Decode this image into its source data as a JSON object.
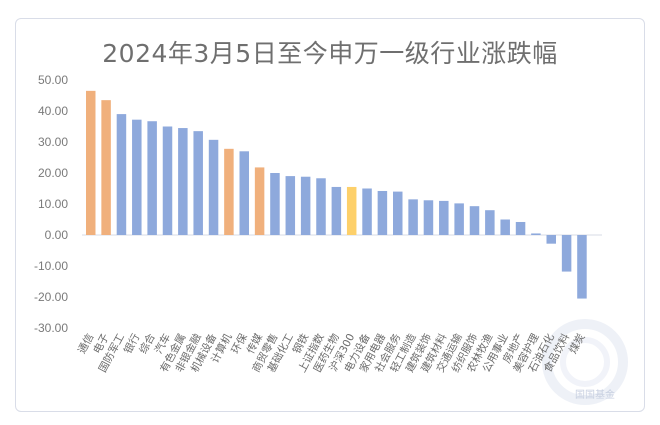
{
  "chart_data": {
    "type": "bar",
    "title": "2024年3月5日至今申万一级行业涨跌幅",
    "ylim": [
      -30,
      50
    ],
    "yticks": [
      "50.00",
      "40.00",
      "30.00",
      "20.00",
      "10.00",
      "0.00",
      "-10.00",
      "-20.00",
      "-30.00"
    ],
    "grid": false,
    "categories": [
      "通信",
      "电子",
      "国防军工",
      "银行",
      "综合",
      "汽车",
      "有色金属",
      "非银金融",
      "机械设备",
      "计算机",
      "环保",
      "传媒",
      "商贸零售",
      "基础化工",
      "钢铁",
      "上证指数",
      "医药生物",
      "沪深300",
      "电力设备",
      "家用电器",
      "社会服务",
      "轻工制造",
      "建筑装饰",
      "建筑材料",
      "交通运输",
      "纺织服饰",
      "农林牧渔",
      "公用事业",
      "房地产",
      "美容护理",
      "石油石化",
      "食品饮料",
      "煤炭"
    ],
    "values": [
      46.5,
      43.5,
      39.0,
      37.2,
      36.7,
      35.0,
      34.5,
      33.5,
      30.7,
      27.8,
      27.0,
      21.8,
      20.0,
      19.0,
      18.8,
      18.3,
      15.5,
      15.5,
      15.0,
      14.2,
      14.0,
      11.5,
      11.2,
      11.0,
      10.2,
      9.3,
      8.0,
      5.0,
      4.2,
      0.5,
      -2.8,
      -11.8,
      -20.5
    ],
    "colors": {
      "default": "#8ea9dc",
      "highlight": "#f0b07c",
      "index": "#fdd06a"
    },
    "highlight_categories": [
      "通信",
      "电子",
      "计算机",
      "传媒"
    ],
    "index_categories": [
      "沪深300"
    ]
  },
  "watermark": {
    "text": "国国基金"
  }
}
